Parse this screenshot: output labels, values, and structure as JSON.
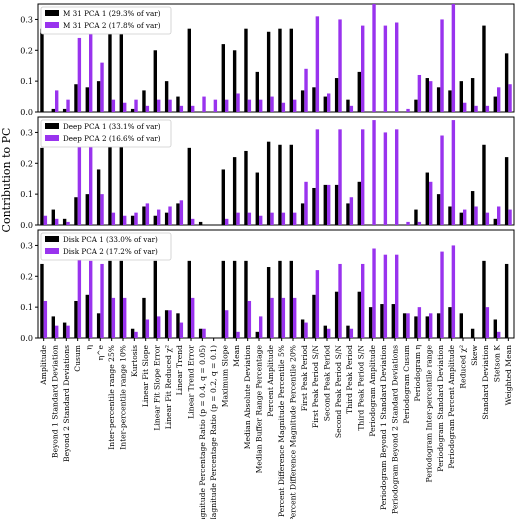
{
  "chart_data": {
    "type": "bar",
    "ylabel": "Contribution to PC",
    "yticks": [
      0.0,
      0.1,
      0.2,
      0.3
    ],
    "ylim": [
      0,
      0.35
    ],
    "grid": false,
    "legend_position": "top-left",
    "categories": [
      "Amplitude",
      "Beyond 1 Standard Deviation",
      "Beyond 2 Standard Deviations",
      "Cusum",
      "η",
      "η^e",
      "Inter-percentile range 25%",
      "Inter-percentile range 10%",
      "Kurtosis",
      "Linear Fit Slope",
      "Linear Fit Slope Error",
      "Linear Fit Reduced χ²",
      "Linear Trend",
      "Linear Trend Error",
      "Magnitude Percentage Ratio (p = 0.4, q = 0.05)",
      "Magnitude Percentage Ratio (p = 0.2, q = 0.1)",
      "Maximum Slope",
      "Mean",
      "Median Absolute Deviation",
      "Median Buffer Range Percentage",
      "Percent Amplitude",
      "Percent Difference Magnitude Percentile 5%",
      "Percent Difference Magnitude Percentile 20%",
      "First Peak Period",
      "First Peak Period S/N",
      "Second Peak Period",
      "Second Peak Period S/N",
      "Third Peak Period",
      "Third Peak Period S/N",
      "Periodogram Amplitude",
      "Periodogram Beyond 1 Standard Deviation",
      "Periodogram Beyond 2 Standard Deviations",
      "Periodogram Cusum",
      "Periodogram η",
      "Periodogram Inter-percentile range",
      "Periodogram Standard Deviation",
      "Periodogram Percent Amplitude",
      "Reduced χ²",
      "Skew",
      "Standard Deviation",
      "Stetson K",
      "Weighted Mean"
    ],
    "series_colors": [
      "#000000",
      "#9933ee"
    ],
    "panels": [
      {
        "series": [
          {
            "name": "M 31 PCA 1 (29.3% of var)",
            "values": [
              0.27,
              0.01,
              0.01,
              0.09,
              0.08,
              0.1,
              0.27,
              0.28,
              0.01,
              0.07,
              0.2,
              0.1,
              0.05,
              0.27,
              0.0,
              0.0,
              0.22,
              0.2,
              0.27,
              0.13,
              0.26,
              0.27,
              0.27,
              0.07,
              0.08,
              0.05,
              0.11,
              0.04,
              0.13,
              0.0,
              0.0,
              0.0,
              0.0,
              0.04,
              0.11,
              0.08,
              0.07,
              0.1,
              0.11,
              0.28,
              0.05,
              0.19
            ]
          },
          {
            "name": "M 31 PCA 2 (17.8% of var)",
            "values": [
              0.0,
              0.07,
              0.04,
              0.24,
              0.26,
              0.16,
              0.04,
              0.03,
              0.04,
              0.02,
              0.04,
              0.04,
              0.02,
              0.02,
              0.05,
              0.04,
              0.04,
              0.06,
              0.04,
              0.04,
              0.05,
              0.03,
              0.04,
              0.14,
              0.31,
              0.06,
              0.3,
              0.02,
              0.28,
              0.35,
              0.28,
              0.29,
              0.01,
              0.12,
              0.1,
              0.3,
              0.35,
              0.03,
              0.02,
              0.02,
              0.08,
              0.09
            ]
          }
        ]
      },
      {
        "series": [
          {
            "name": "Deep PCA 1 (33.1% of var)",
            "values": [
              0.25,
              0.05,
              0.02,
              0.09,
              0.1,
              0.18,
              0.26,
              0.26,
              0.03,
              0.06,
              0.03,
              0.04,
              0.07,
              0.25,
              0.01,
              0.0,
              0.18,
              0.22,
              0.24,
              0.17,
              0.27,
              0.26,
              0.26,
              0.07,
              0.12,
              0.13,
              0.13,
              0.07,
              0.14,
              0.0,
              0.0,
              0.0,
              0.0,
              0.05,
              0.17,
              0.1,
              0.06,
              0.04,
              0.11,
              0.26,
              0.02,
              0.22
            ]
          },
          {
            "name": "Deep PCA 2 (16.6% of var)",
            "values": [
              0.03,
              0.02,
              0.01,
              0.26,
              0.27,
              0.1,
              0.04,
              0.03,
              0.04,
              0.07,
              0.05,
              0.06,
              0.08,
              0.02,
              0.0,
              0.0,
              0.02,
              0.04,
              0.04,
              0.03,
              0.04,
              0.04,
              0.04,
              0.14,
              0.31,
              0.13,
              0.31,
              0.09,
              0.31,
              0.34,
              0.3,
              0.31,
              0.01,
              0.01,
              0.14,
              0.29,
              0.34,
              0.05,
              0.06,
              0.04,
              0.06,
              0.05
            ]
          }
        ]
      },
      {
        "series": [
          {
            "name": "Disk PCA 1 (33.0% of var)",
            "values": [
              0.24,
              0.07,
              0.05,
              0.12,
              0.14,
              0.08,
              0.25,
              0.25,
              0.03,
              0.13,
              0.25,
              0.09,
              0.08,
              0.25,
              0.03,
              0.0,
              0.25,
              0.25,
              0.25,
              0.02,
              0.23,
              0.25,
              0.25,
              0.06,
              0.14,
              0.04,
              0.15,
              0.04,
              0.15,
              0.1,
              0.11,
              0.11,
              0.08,
              0.07,
              0.07,
              0.08,
              0.1,
              0.08,
              0.03,
              0.25,
              0.06,
              0.24
            ]
          },
          {
            "name": "Disk PCA 2 (17.2% of var)",
            "values": [
              0.12,
              0.04,
              0.04,
              0.29,
              0.25,
              0.24,
              0.13,
              0.13,
              0.02,
              0.06,
              0.07,
              0.09,
              0.05,
              0.13,
              0.03,
              0.0,
              0.09,
              0.02,
              0.12,
              0.07,
              0.13,
              0.13,
              0.13,
              0.05,
              0.22,
              0.03,
              0.24,
              0.03,
              0.24,
              0.29,
              0.27,
              0.27,
              0.08,
              0.1,
              0.08,
              0.28,
              0.3,
              0.0,
              0.0,
              0.1,
              0.02,
              0.0
            ]
          }
        ]
      }
    ]
  }
}
